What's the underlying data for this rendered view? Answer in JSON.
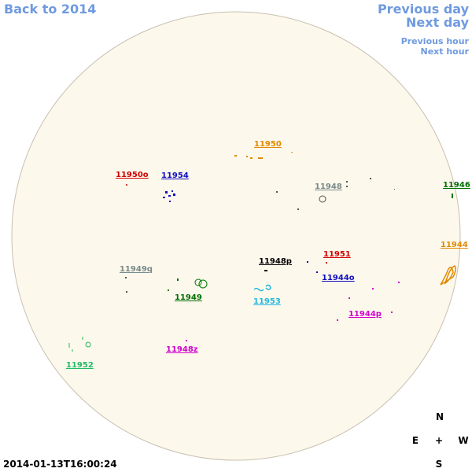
{
  "navigation": {
    "back_year": "Back to 2014",
    "previous_day": "Previous day",
    "next_day": "Next day",
    "previous_hour": "Previous hour",
    "next_hour": "Next hour"
  },
  "regions": [
    "11950",
    "11950o",
    "11954",
    "11948",
    "11946",
    "11944",
    "11951",
    "11948p",
    "11944o",
    "11949q",
    "11949",
    "11953",
    "11944p",
    "11948z",
    "11952"
  ],
  "compass": {
    "north": "N",
    "east": "E",
    "center": "+",
    "west": "W",
    "south": "S"
  },
  "timestamp": "2014-01-13T16:00:24"
}
